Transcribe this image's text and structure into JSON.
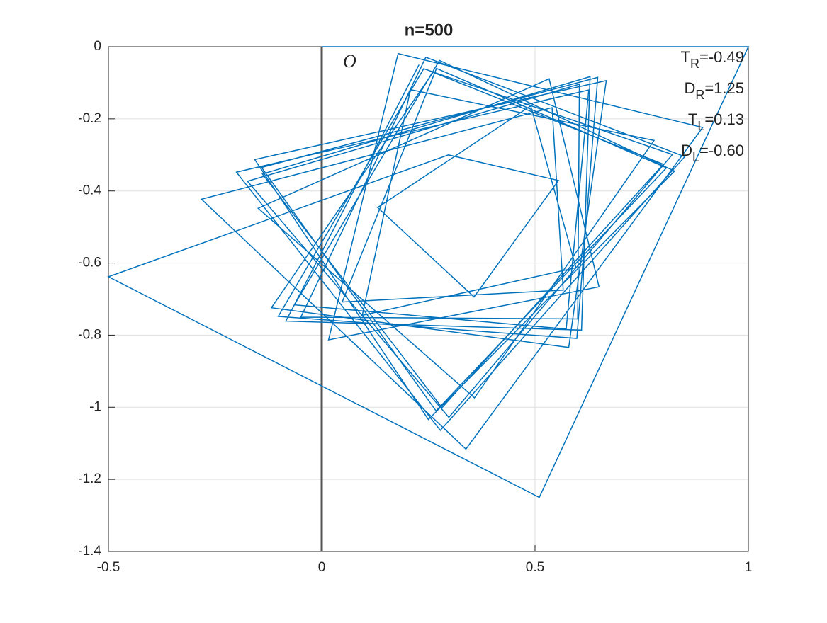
{
  "chart_data": {
    "type": "line",
    "title": "n=500",
    "x": [
      0,
      1,
      0.51,
      -0.5,
      0.297,
      0.555,
      0.357,
      0.131,
      0.49,
      0.596,
      0.095,
      0.208,
      0.779,
      0.358,
      -0.149,
      0.533,
      0.65,
      0.016,
      0.179,
      0.893,
      0.338,
      -0.282,
      0.54,
      0.566,
      0.048,
      0.269,
      0.808,
      0.268,
      -0.141,
      0.647,
      0.598,
      -0.102,
      0.239,
      0.822,
      0.298,
      -0.174,
      0.604,
      0.6,
      -0.049,
      0.244,
      0.851,
      0.278,
      -0.2,
      0.626,
      0.573,
      -0.064,
      0.276,
      0.827,
      0.25,
      -0.157,
      0.667,
      0.579,
      -0.118,
      0.261,
      0.801,
      0.282,
      -0.139,
      0.629,
      0.609,
      -0.084,
      0.228
    ],
    "series": [
      {
        "color": "#0072bd",
        "values": [
          0,
          0,
          -1.25,
          -0.638,
          -0.3,
          -0.371,
          -0.694,
          -0.446,
          -0.164,
          -0.613,
          -0.745,
          -0.119,
          -0.26,
          -0.974,
          -0.448,
          -0.089,
          -0.666,
          -0.813,
          -0.019,
          -0.224,
          -1.116,
          -0.423,
          -0.169,
          -0.675,
          -0.708,
          -0.06,
          -0.336,
          -1.01,
          -0.335,
          -0.085,
          -0.809,
          -0.748,
          -0.061,
          -0.299,
          -1.028,
          -0.373,
          -0.104,
          -0.755,
          -0.75,
          -0.029,
          -0.305,
          -1.064,
          -0.348,
          -0.12,
          -0.783,
          -0.716,
          -0.038,
          -0.345,
          -1.034,
          -0.313,
          -0.094,
          -0.834,
          -0.724,
          -0.071,
          -0.326,
          -1.001,
          -0.353,
          -0.083,
          -0.786,
          -0.761,
          -0.05
        ]
      }
    ],
    "xlim": [
      -0.5,
      1
    ],
    "ylim": [
      -1.4,
      0
    ],
    "xticks": [
      -0.5,
      0,
      0.5,
      1
    ],
    "yticks": [
      -1.4,
      -1.2,
      -1,
      -0.8,
      -0.6,
      -0.4,
      -0.2,
      0
    ],
    "grid": true,
    "border_line": {
      "x": 0,
      "color": "#555555"
    },
    "origin_label": "O",
    "annotations": [
      {
        "base": "T",
        "sub": "R",
        "text": "=-0.49"
      },
      {
        "base": "D",
        "sub": "R",
        "text": "=1.25"
      },
      {
        "base": "T",
        "sub": "L",
        "text": "=0.13"
      },
      {
        "base": "D",
        "sub": "L",
        "text": "=-0.60"
      }
    ]
  }
}
